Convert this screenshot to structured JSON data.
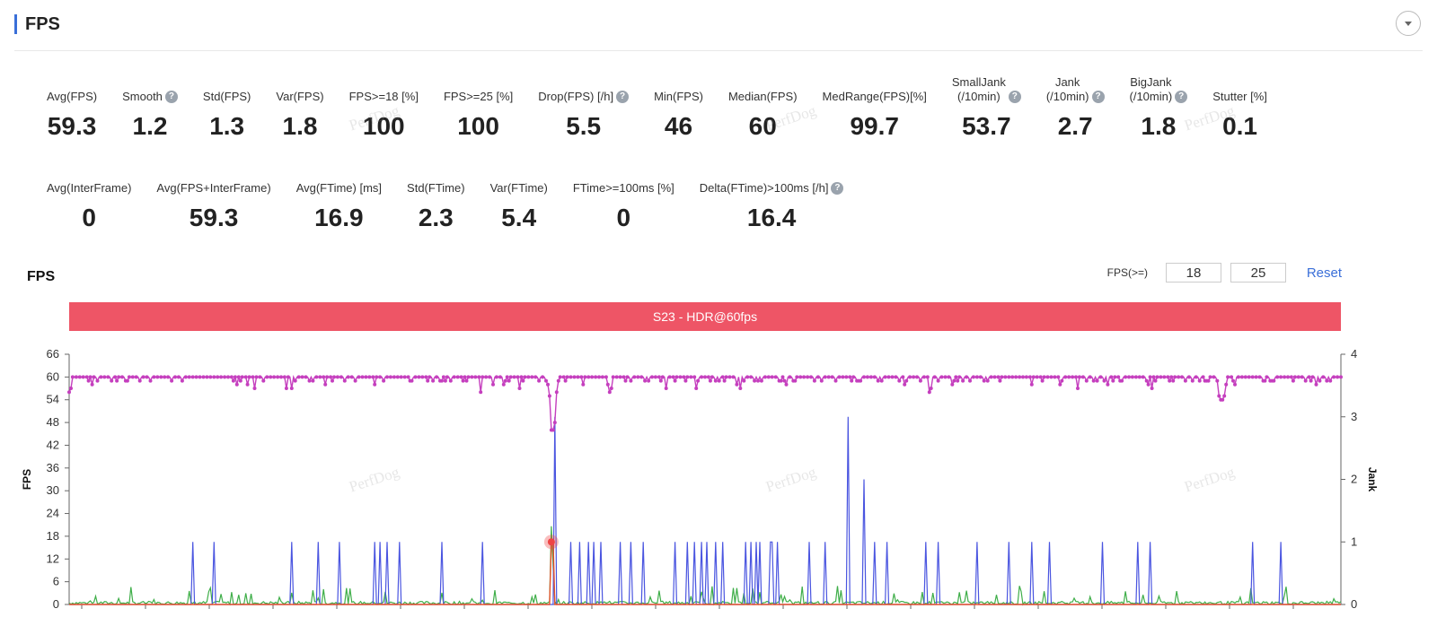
{
  "section": {
    "title": "FPS"
  },
  "metrics_row1": [
    {
      "label": "Avg(FPS)",
      "value": "59.3",
      "help": false
    },
    {
      "label": "Smooth",
      "value": "1.2",
      "help": true
    },
    {
      "label": "Std(FPS)",
      "value": "1.3",
      "help": false
    },
    {
      "label": "Var(FPS)",
      "value": "1.8",
      "help": false
    },
    {
      "label": "FPS>=18 [%]",
      "value": "100",
      "help": false
    },
    {
      "label": "FPS>=25 [%]",
      "value": "100",
      "help": false
    },
    {
      "label": "Drop(FPS) [/h]",
      "value": "5.5",
      "help": true
    },
    {
      "label": "Min(FPS)",
      "value": "46",
      "help": false
    },
    {
      "label": "Median(FPS)",
      "value": "60",
      "help": false
    },
    {
      "label": "MedRange(FPS)[%]",
      "value": "99.7",
      "help": false
    },
    {
      "label": "SmallJank\n(/10min)",
      "value": "53.7",
      "help": true
    },
    {
      "label": "Jank\n(/10min)",
      "value": "2.7",
      "help": true
    },
    {
      "label": "BigJank\n(/10min)",
      "value": "1.8",
      "help": true
    },
    {
      "label": "Stutter [%]",
      "value": "0.1",
      "help": false
    }
  ],
  "metrics_row2": [
    {
      "label": "Avg(InterFrame)",
      "value": "0",
      "help": false
    },
    {
      "label": "Avg(FPS+InterFrame)",
      "value": "59.3",
      "help": false
    },
    {
      "label": "Avg(FTime) [ms]",
      "value": "16.9",
      "help": false
    },
    {
      "label": "Std(FTime)",
      "value": "2.3",
      "help": false
    },
    {
      "label": "Var(FTime)",
      "value": "5.4",
      "help": false
    },
    {
      "label": "FTime>=100ms [%]",
      "value": "0",
      "help": false
    },
    {
      "label": "Delta(FTime)>100ms [/h]",
      "value": "16.4",
      "help": true
    }
  ],
  "help_glyph": "?",
  "watermark": "PerfDog",
  "chart_header": {
    "title": "FPS",
    "threshold_label": "FPS(>=)",
    "threshold_low": "18",
    "threshold_high": "25",
    "reset_label": "Reset"
  },
  "chart_data": {
    "type": "line",
    "banner": "S23 - HDR@60fps",
    "y_left": {
      "label": "FPS",
      "ticks": [
        0,
        6,
        12,
        18,
        24,
        30,
        36,
        42,
        48,
        54,
        60,
        66
      ],
      "range": [
        0,
        66
      ]
    },
    "y_right": {
      "label": "Jank",
      "ticks": [
        0,
        1,
        2,
        3,
        4
      ],
      "range": [
        0,
        4
      ]
    },
    "x": {
      "range": [
        0,
        720
      ],
      "tick_labels": []
    },
    "series": [
      {
        "axis": "left",
        "color": "#c53fbe",
        "baseline": 60,
        "dips": [
          [
            40,
            59
          ],
          [
            95,
            58
          ],
          [
            105,
            57
          ],
          [
            110,
            59
          ],
          [
            145,
            58
          ],
          [
            178,
            59
          ],
          [
            210,
            59
          ],
          [
            240,
            58
          ],
          [
            255,
            57
          ],
          [
            270,
            59
          ],
          [
            318,
            59
          ],
          [
            355,
            58
          ],
          [
            380,
            57
          ],
          [
            390,
            59
          ],
          [
            410,
            59
          ],
          [
            448,
            59
          ],
          [
            460,
            59
          ],
          [
            470,
            59
          ],
          [
            487,
            56
          ],
          [
            500,
            58
          ],
          [
            520,
            59
          ],
          [
            545,
            58
          ],
          [
            580,
            59
          ],
          [
            610,
            57
          ],
          [
            625,
            59
          ],
          [
            636,
            59
          ],
          [
            660,
            58
          ],
          [
            680,
            59
          ],
          [
            700,
            59
          ],
          [
            712,
            59
          ]
        ],
        "overrides": [
          [
            271,
            58
          ],
          [
            272,
            55
          ],
          [
            273,
            46
          ],
          [
            274,
            46
          ],
          [
            275,
            48
          ],
          [
            276,
            56
          ],
          [
            277,
            59
          ],
          [
            305,
            58
          ],
          [
            306,
            56
          ],
          [
            307,
            57
          ],
          [
            355,
            57
          ],
          [
            356,
            59
          ],
          [
            650,
            59
          ],
          [
            651,
            55
          ],
          [
            652,
            54
          ],
          [
            653,
            54
          ],
          [
            654,
            55
          ],
          [
            655,
            58
          ]
        ]
      },
      {
        "axis": "right",
        "color": "#4a55e0",
        "baseline": 0,
        "spikes": [
          [
            70,
            1
          ],
          [
            82,
            1
          ],
          [
            126,
            1
          ],
          [
            141,
            1
          ],
          [
            153,
            1
          ],
          [
            173,
            1
          ],
          [
            176,
            1
          ],
          [
            180,
            1
          ],
          [
            187,
            1
          ],
          [
            211,
            1
          ],
          [
            234,
            1
          ],
          [
            275,
            3
          ],
          [
            284,
            1
          ],
          [
            289,
            1
          ],
          [
            294,
            1
          ],
          [
            297,
            1
          ],
          [
            301,
            1
          ],
          [
            312,
            1
          ],
          [
            318,
            1
          ],
          [
            325,
            1
          ],
          [
            343,
            1
          ],
          [
            350,
            1
          ],
          [
            354,
            1
          ],
          [
            358,
            1
          ],
          [
            361,
            1
          ],
          [
            366,
            1
          ],
          [
            370,
            1
          ],
          [
            383,
            1
          ],
          [
            386,
            1
          ],
          [
            389,
            1
          ],
          [
            391,
            1
          ],
          [
            397,
            1
          ],
          [
            398,
            1
          ],
          [
            401,
            1
          ],
          [
            419,
            1
          ],
          [
            428,
            1
          ],
          [
            441,
            3
          ],
          [
            450,
            2
          ],
          [
            456,
            1
          ],
          [
            463,
            1
          ],
          [
            485,
            1
          ],
          [
            492,
            1
          ],
          [
            514,
            1
          ],
          [
            532,
            1
          ],
          [
            545,
            1
          ],
          [
            555,
            1
          ],
          [
            585,
            1
          ],
          [
            605,
            1
          ],
          [
            612,
            1
          ],
          [
            670,
            1
          ],
          [
            686,
            1
          ]
        ]
      },
      {
        "axis": "right",
        "color": "#3fae49",
        "baseline": 0.05,
        "max": 0.3
      },
      {
        "axis": "right",
        "color": "#e8522b",
        "baseline": 0,
        "spikes": [
          [
            273,
            1
          ],
          [
            274,
            1
          ]
        ]
      }
    ],
    "marker": {
      "x": 273,
      "y": 1,
      "axis": "right"
    },
    "grid": false,
    "legend": "none"
  }
}
